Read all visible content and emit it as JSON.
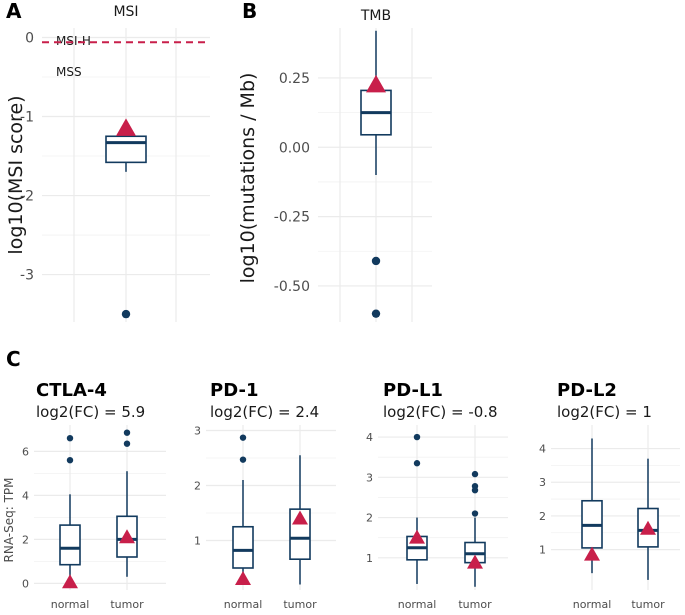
{
  "colors": {
    "box": "#123a5e",
    "triangle": "#c81f4a",
    "grid": "#ebebeb",
    "refline": "#c81f4a"
  },
  "panel_letters": {
    "a": "A",
    "b": "B",
    "c": "C"
  },
  "chart_data": [
    {
      "id": "msi",
      "type": "box",
      "title": "MSI",
      "ylabel": "log10(MSI score)",
      "ylim": [
        -3.6,
        0.12
      ],
      "yticks": [
        0,
        -1,
        -2,
        -3
      ],
      "ytick_labels": [
        "0",
        "-1",
        "-2",
        "-3"
      ],
      "box": {
        "q1": -1.58,
        "median": -1.33,
        "q3": -1.25,
        "whisker_low": -1.7,
        "whisker_high": -1.25,
        "outliers": [
          -3.5
        ]
      },
      "sample": -1.15,
      "ref_line": {
        "y": -0.06,
        "above_label": "MSI-H",
        "below_label": "MSS"
      }
    },
    {
      "id": "tmb",
      "type": "box",
      "title": "TMB",
      "ylabel": "log10(mutations / Mb)",
      "ylim": [
        -0.63,
        0.43
      ],
      "yticks": [
        0.25,
        0.0,
        -0.25,
        -0.5
      ],
      "ytick_labels": [
        "0.25",
        "0.00",
        "-0.25",
        "-0.50"
      ],
      "box": {
        "q1": 0.045,
        "median": 0.125,
        "q3": 0.205,
        "whisker_low": -0.1,
        "whisker_high": 0.42,
        "outliers": [
          -0.41,
          -0.6
        ]
      },
      "sample": 0.225
    },
    {
      "id": "ctla4",
      "type": "box",
      "gene": "CTLA-4",
      "fc_label": "log2(FC) = 5.9",
      "ylabel": "RNA-Seq: TPM",
      "ylim": [
        -0.3,
        7.2
      ],
      "yticks": [
        0,
        2,
        4,
        6
      ],
      "ytick_labels": [
        "0",
        "2",
        "4",
        "6"
      ],
      "categories": [
        "normal",
        "tumor"
      ],
      "boxes": [
        {
          "q1": 0.85,
          "median": 1.6,
          "q3": 2.65,
          "whisker_low": 0.1,
          "whisker_high": 4.05,
          "outliers": [
            5.6,
            6.6
          ]
        },
        {
          "q1": 1.2,
          "median": 2.0,
          "q3": 3.05,
          "whisker_low": 0.3,
          "whisker_high": 5.1,
          "outliers": [
            6.35,
            6.85
          ]
        }
      ],
      "samples": [
        0.05,
        2.1
      ]
    },
    {
      "id": "pd1",
      "type": "box",
      "gene": "PD-1",
      "fc_label": "log2(FC) = 2.4",
      "ylim": [
        0.1,
        3.1
      ],
      "yticks": [
        1,
        2,
        3
      ],
      "ytick_labels": [
        "1",
        "2",
        "3"
      ],
      "categories": [
        "normal",
        "tumor"
      ],
      "boxes": [
        {
          "q1": 0.5,
          "median": 0.82,
          "q3": 1.25,
          "whisker_low": 0.3,
          "whisker_high": 2.1,
          "outliers": [
            2.47,
            2.87
          ]
        },
        {
          "q1": 0.66,
          "median": 1.04,
          "q3": 1.57,
          "whisker_low": 0.2,
          "whisker_high": 2.55,
          "outliers": []
        }
      ],
      "samples": [
        0.3,
        1.4
      ]
    },
    {
      "id": "pdl1",
      "type": "box",
      "gene": "PD-L1",
      "fc_label": "log2(FC) = -0.8",
      "ylim": [
        0.2,
        4.3
      ],
      "yticks": [
        1,
        2,
        3,
        4
      ],
      "ytick_labels": [
        "1",
        "2",
        "3",
        "4"
      ],
      "categories": [
        "normal",
        "tumor"
      ],
      "boxes": [
        {
          "q1": 0.95,
          "median": 1.25,
          "q3": 1.53,
          "whisker_low": 0.35,
          "whisker_high": 2.0,
          "outliers": [
            3.35,
            4.0
          ]
        },
        {
          "q1": 0.88,
          "median": 1.1,
          "q3": 1.38,
          "whisker_low": 0.28,
          "whisker_high": 2.0,
          "outliers": [
            2.1,
            2.68,
            2.78,
            3.08
          ]
        }
      ],
      "samples": [
        1.5,
        0.88
      ]
    },
    {
      "id": "pdl2",
      "type": "box",
      "gene": "PD-L2",
      "fc_label": "log2(FC) = 1",
      "ylim": [
        -0.2,
        4.7
      ],
      "yticks": [
        1,
        2,
        3,
        4
      ],
      "ytick_labels": [
        "1",
        "2",
        "3",
        "4"
      ],
      "categories": [
        "normal",
        "tumor"
      ],
      "boxes": [
        {
          "q1": 1.05,
          "median": 1.72,
          "q3": 2.45,
          "whisker_low": 0.3,
          "whisker_high": 4.3,
          "outliers": []
        },
        {
          "q1": 1.08,
          "median": 1.57,
          "q3": 2.22,
          "whisker_low": 0.1,
          "whisker_high": 3.7,
          "outliers": []
        }
      ],
      "samples": [
        0.85,
        1.62
      ]
    }
  ]
}
